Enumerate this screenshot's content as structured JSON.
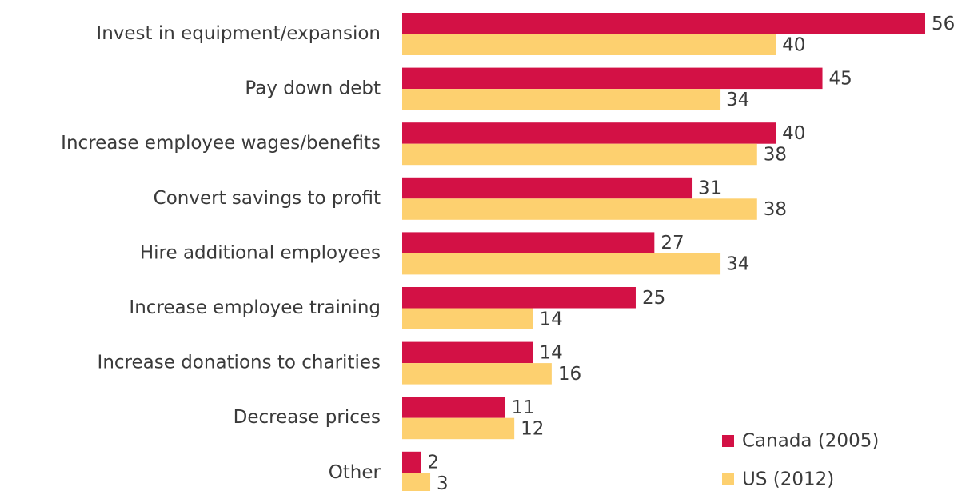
{
  "chart_data": {
    "type": "bar",
    "orientation": "horizontal",
    "categories": [
      "Invest in equipment/expansion",
      "Pay down debt",
      "Increase employee wages/benefits",
      "Convert savings to profit",
      "Hire additional employees",
      "Increase employee training",
      "Increase donations to charities",
      "Decrease prices",
      "Other"
    ],
    "series": [
      {
        "name": "Canada (2005)",
        "color": "#d31145",
        "values": [
          56,
          45,
          40,
          31,
          27,
          25,
          14,
          11,
          2
        ]
      },
      {
        "name": "US (2012)",
        "color": "#fdd06f",
        "values": [
          40,
          34,
          38,
          38,
          34,
          14,
          16,
          12,
          3
        ]
      }
    ],
    "xlim": [
      0,
      56
    ],
    "legend": "lower right"
  }
}
